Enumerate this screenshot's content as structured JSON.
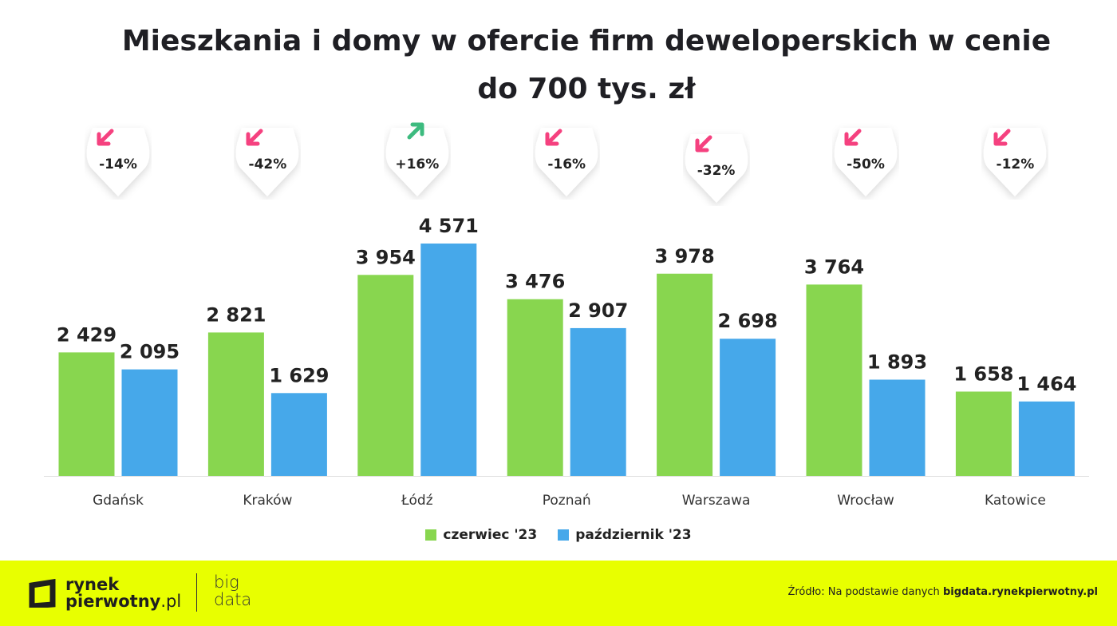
{
  "chart_data": {
    "type": "bar",
    "title": "Mieszkania i domy w ofercie firm deweloperskich w cenie do 700 tys. zł",
    "categories": [
      "Gdańsk",
      "Kraków",
      "Łódź",
      "Poznań",
      "Warszawa",
      "Wrocław",
      "Katowice"
    ],
    "series": [
      {
        "name": "czerwiec '23",
        "color": "#88d64f",
        "values": [
          2429,
          2821,
          3954,
          3476,
          3978,
          3764,
          1658
        ],
        "labels": [
          "2 429",
          "2 821",
          "3 954",
          "3 476",
          "3 978",
          "3 764",
          "1 658"
        ]
      },
      {
        "name": "październik '23",
        "color": "#46a8ea",
        "values": [
          2095,
          1629,
          4571,
          2907,
          2698,
          1893,
          1464
        ],
        "labels": [
          "2 095",
          "1 629",
          "4 571",
          "2 907",
          "2 698",
          "1 893",
          "1 464"
        ]
      }
    ],
    "changes": [
      {
        "label": "-14%",
        "direction": "down"
      },
      {
        "label": "-42%",
        "direction": "down"
      },
      {
        "label": "+16%",
        "direction": "up"
      },
      {
        "label": "-16%",
        "direction": "down"
      },
      {
        "label": "-32%",
        "direction": "down"
      },
      {
        "label": "-50%",
        "direction": "down"
      },
      {
        "label": "-12%",
        "direction": "down"
      }
    ],
    "change_colors": {
      "down": "#f5417f",
      "up": "#3dbb7f"
    },
    "ylim": [
      0,
      4571
    ],
    "grid": false,
    "legend": "bottom"
  },
  "footer": {
    "logo1_line1": "rynek",
    "logo1_line2": "pierwotny",
    "logo1_suffix": ".pl",
    "logo2_line1": "big",
    "logo2_line2": "data",
    "source_prefix": "Źródło: Na podstawie danych ",
    "source_link": "bigdata.rynekpierwotny.pl"
  }
}
